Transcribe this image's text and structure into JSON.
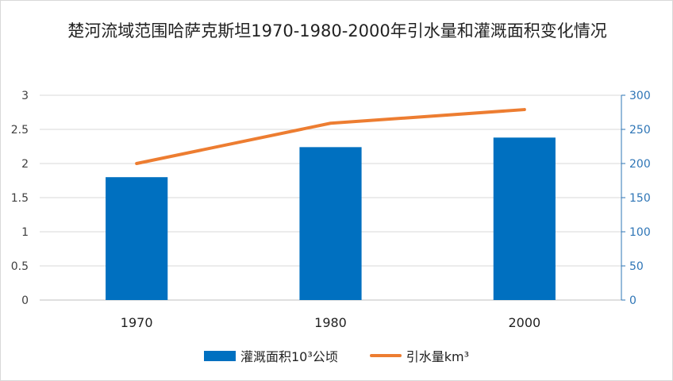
{
  "chart_data": {
    "type": "bar",
    "title": "楚河流域范围哈萨克斯坦1970-1980-2000年引水量和灌溉面积变化情况",
    "categories": [
      "1970",
      "1980",
      "2000"
    ],
    "series": [
      {
        "name": "灌溉面积10³公顷",
        "type": "bar",
        "axis": "left",
        "values": [
          1.8,
          2.24,
          2.38
        ],
        "color": "#0070C0"
      },
      {
        "name": "引水量km³",
        "type": "line",
        "axis": "right",
        "values": [
          200,
          259,
          279
        ],
        "color": "#ED7D31"
      }
    ],
    "y_left": {
      "range": [
        0,
        3
      ],
      "ticks": [
        "0",
        "0.5",
        "1",
        "1.5",
        "2",
        "2.5",
        "3"
      ],
      "color": "#404040"
    },
    "y_right": {
      "range": [
        0,
        300
      ],
      "ticks": [
        "0",
        "50",
        "100",
        "150",
        "200",
        "250",
        "300"
      ],
      "color": "#2E75B6"
    },
    "grid": true,
    "legend_position": "bottom"
  }
}
